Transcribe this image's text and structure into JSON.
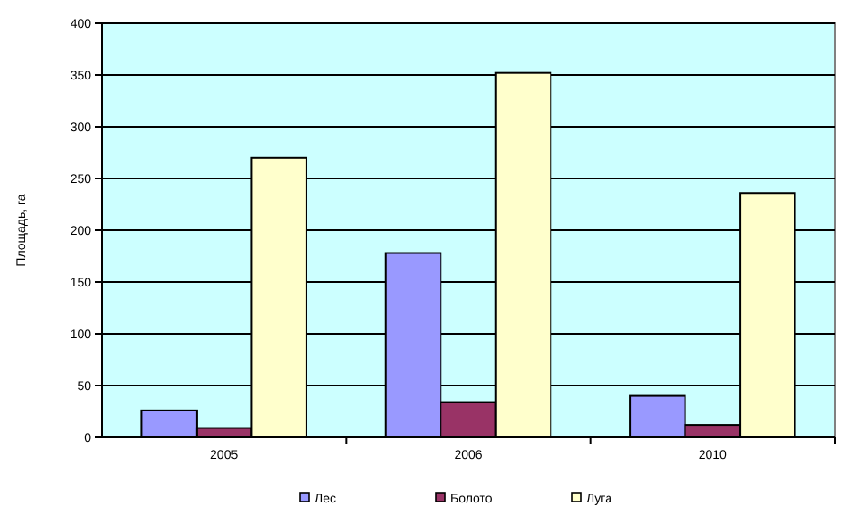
{
  "chart_data": {
    "type": "bar",
    "ylabel": "Площадь, га",
    "categories": [
      "2005",
      "2006",
      "2010"
    ],
    "series": [
      {
        "name": "Лес",
        "color": "#9999ff",
        "values": [
          26,
          178,
          40
        ]
      },
      {
        "name": "Болото",
        "color": "#993366",
        "values": [
          9,
          34,
          12
        ]
      },
      {
        "name": "Луга",
        "color": "#ffffcc",
        "values": [
          270,
          352,
          236
        ]
      }
    ],
    "ylim": [
      0,
      400
    ],
    "yticks": [
      0,
      50,
      100,
      150,
      200,
      250,
      300,
      350,
      400
    ],
    "grid": "y",
    "legend": "bottom"
  }
}
